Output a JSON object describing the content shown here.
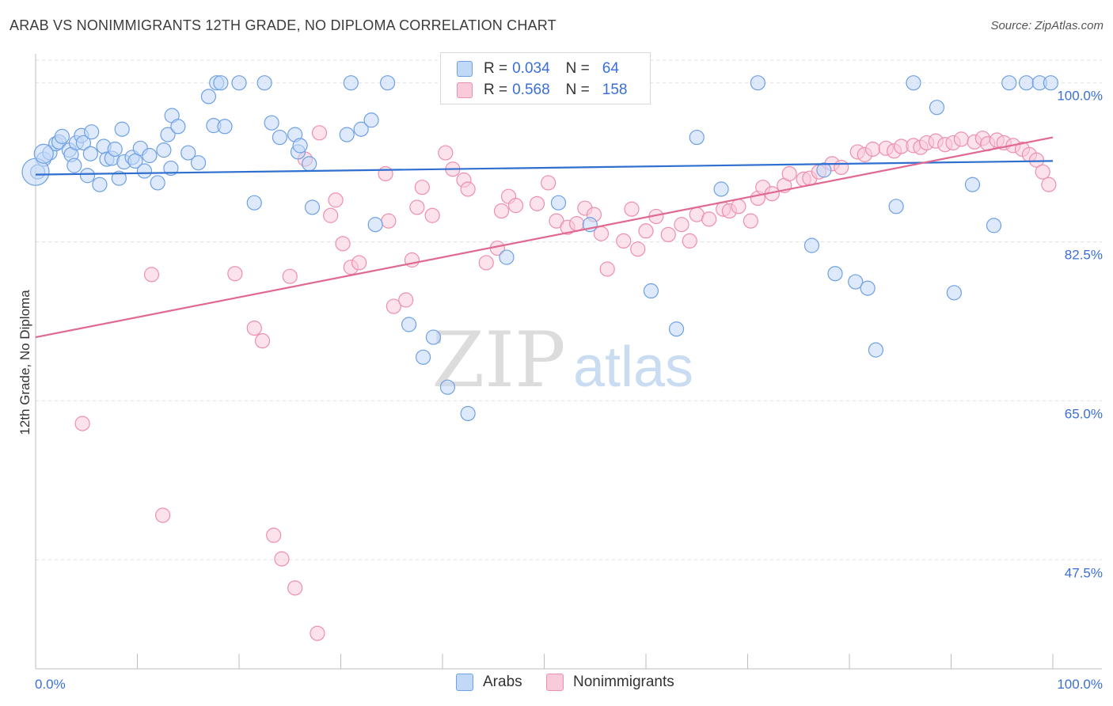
{
  "header": {
    "title": "ARAB VS NONIMMIGRANTS 12TH GRADE, NO DIPLOMA CORRELATION CHART",
    "source": "Source: ZipAtlas.com"
  },
  "legend": {
    "r_label": "R =",
    "n_label": "N =",
    "rows": [
      {
        "r": "0.034",
        "n": "64"
      },
      {
        "r": "0.568",
        "n": "158"
      }
    ]
  },
  "watermark": {
    "zip": "ZIP",
    "atlas": "atlas"
  },
  "chart_data": {
    "type": "scatter",
    "title": "ARAB VS NONIMMIGRANTS 12TH GRADE, NO DIPLOMA CORRELATION CHART",
    "xlabel": "",
    "ylabel": "12th Grade, No Diploma",
    "x_tick_labels": [
      "0.0%",
      "100.0%"
    ],
    "y_tick_labels": [
      "100.0%",
      "82.5%",
      "65.0%",
      "47.5%"
    ],
    "y_ticks": [
      100.0,
      82.5,
      65.0,
      47.5
    ],
    "xlim": [
      0,
      100
    ],
    "ylim": [
      35.5,
      102.5
    ],
    "grid": "horizontal dashed",
    "legend_position": "top-center",
    "colors": {
      "Arabs": "#6ea0e6",
      "Nonimmigrants": "#ee8fae",
      "Arabs_line": "#2f6fcf",
      "Nonimmigrants_line": "#e06990",
      "tick_label": "#3a6fd8"
    },
    "series": [
      {
        "name": "Arabs",
        "trend": {
          "x": [
            0,
            100
          ],
          "y": [
            89.9,
            91.4
          ]
        },
        "x": [
          0.2,
          0.8,
          1.4,
          2.0,
          2.3,
          2.6,
          3.3,
          3.5,
          3.8,
          4.0,
          4.5,
          4.7,
          5.1,
          5.4,
          5.5,
          6.3,
          6.7,
          7.0,
          7.5,
          7.8,
          8.2,
          8.5,
          8.7,
          9.5,
          9.8,
          10.3,
          10.7,
          11.2,
          12.0,
          12.6,
          13.0,
          13.3,
          13.4,
          14.0,
          15.0,
          16.0,
          17.0,
          17.5,
          17.8,
          18.2,
          18.6,
          20.0,
          21.5,
          22.5,
          23.2,
          24.0,
          25.5,
          25.8,
          26.0,
          26.9,
          27.2,
          30.6,
          31.0,
          32.0,
          33.0,
          33.4,
          34.6,
          36.7,
          38.1,
          39.1,
          40.5,
          42.5,
          46.3,
          51.4,
          54.5,
          60.5,
          63.0,
          65.0,
          67.4,
          71.0,
          76.3,
          77.5,
          78.6,
          80.6,
          81.8,
          82.6,
          84.6,
          86.3,
          88.6,
          90.3,
          92.1,
          94.2,
          95.7,
          97.4,
          98.7,
          99.8
        ],
        "y": [
          90.2,
          91.6,
          92.3,
          93.3,
          93.5,
          94.1,
          92.6,
          92.1,
          90.9,
          93.4,
          94.2,
          93.4,
          89.8,
          92.2,
          94.6,
          88.8,
          93.0,
          91.6,
          91.7,
          92.7,
          89.5,
          94.9,
          91.3,
          91.8,
          91.4,
          92.8,
          90.3,
          92.0,
          89.0,
          92.6,
          94.3,
          90.6,
          96.4,
          95.2,
          92.3,
          91.2,
          98.5,
          95.3,
          100.0,
          100.0,
          95.2,
          100.0,
          86.8,
          100.0,
          95.6,
          94.0,
          94.3,
          92.4,
          93.1,
          91.1,
          86.3,
          94.3,
          100.0,
          94.9,
          95.9,
          84.4,
          100.0,
          73.4,
          69.8,
          72.0,
          66.5,
          63.6,
          80.8,
          86.8,
          84.4,
          77.1,
          72.9,
          94.0,
          88.3,
          100.0,
          82.1,
          90.4,
          79.0,
          78.1,
          77.4,
          70.6,
          86.4,
          100.0,
          97.3,
          76.9,
          88.8,
          84.3,
          100.0,
          100.0,
          100.0,
          100.0
        ]
      },
      {
        "name": "Nonimmigrants",
        "trend": {
          "x": [
            0,
            100
          ],
          "y": [
            72.0,
            94.0
          ]
        },
        "x": [
          4.6,
          11.4,
          12.5,
          19.6,
          21.5,
          22.3,
          23.4,
          24.2,
          25.0,
          25.5,
          26.5,
          27.7,
          27.9,
          29.0,
          29.5,
          30.2,
          31.0,
          31.8,
          34.4,
          34.7,
          35.2,
          36.4,
          37.0,
          37.5,
          38.0,
          39.0,
          40.3,
          41.0,
          42.1,
          42.5,
          44.3,
          45.4,
          45.8,
          46.5,
          47.2,
          49.3,
          50.4,
          51.2,
          52.3,
          53.2,
          54.0,
          54.9,
          55.6,
          56.2,
          57.8,
          58.6,
          59.2,
          60.0,
          61.0,
          62.2,
          63.5,
          64.3,
          65.0,
          66.2,
          67.6,
          68.2,
          69.1,
          70.3,
          71.0,
          71.5,
          72.4,
          73.6,
          74.1,
          75.5,
          76.1,
          77.0,
          78.3,
          79.2,
          80.8,
          81.5,
          82.3,
          83.6,
          84.4,
          85.1,
          86.3,
          87.0,
          87.6,
          88.5,
          89.4,
          90.2,
          91.0,
          92.3,
          93.1,
          93.6,
          94.5,
          95.2,
          96.1,
          97.0,
          97.7,
          98.4,
          99.0,
          99.6
        ],
        "y": [
          62.5,
          78.9,
          52.4,
          79.0,
          73.0,
          71.6,
          50.2,
          47.6,
          78.7,
          44.4,
          91.6,
          39.4,
          94.5,
          85.4,
          87.1,
          82.3,
          79.7,
          80.2,
          90.0,
          84.8,
          75.4,
          76.1,
          80.5,
          86.3,
          88.5,
          85.4,
          92.3,
          90.5,
          89.3,
          88.3,
          80.2,
          81.8,
          85.9,
          87.5,
          86.5,
          86.7,
          89.0,
          84.8,
          84.1,
          84.5,
          86.2,
          85.5,
          83.4,
          79.5,
          82.6,
          86.1,
          81.7,
          83.7,
          85.3,
          83.3,
          84.4,
          82.6,
          85.5,
          85.0,
          86.1,
          85.9,
          86.4,
          84.8,
          87.3,
          88.5,
          87.8,
          88.7,
          90.0,
          89.4,
          89.5,
          90.2,
          91.1,
          90.7,
          92.4,
          92.1,
          92.7,
          92.8,
          92.5,
          93.0,
          93.1,
          92.9,
          93.4,
          93.6,
          93.2,
          93.4,
          93.8,
          93.5,
          93.9,
          93.3,
          93.7,
          93.4,
          93.1,
          92.7,
          92.1,
          91.5,
          90.2,
          88.8
        ]
      }
    ]
  },
  "bottom_legend": {
    "arabs": "Arabs",
    "nonimmigrants": "Nonimmigrants"
  }
}
